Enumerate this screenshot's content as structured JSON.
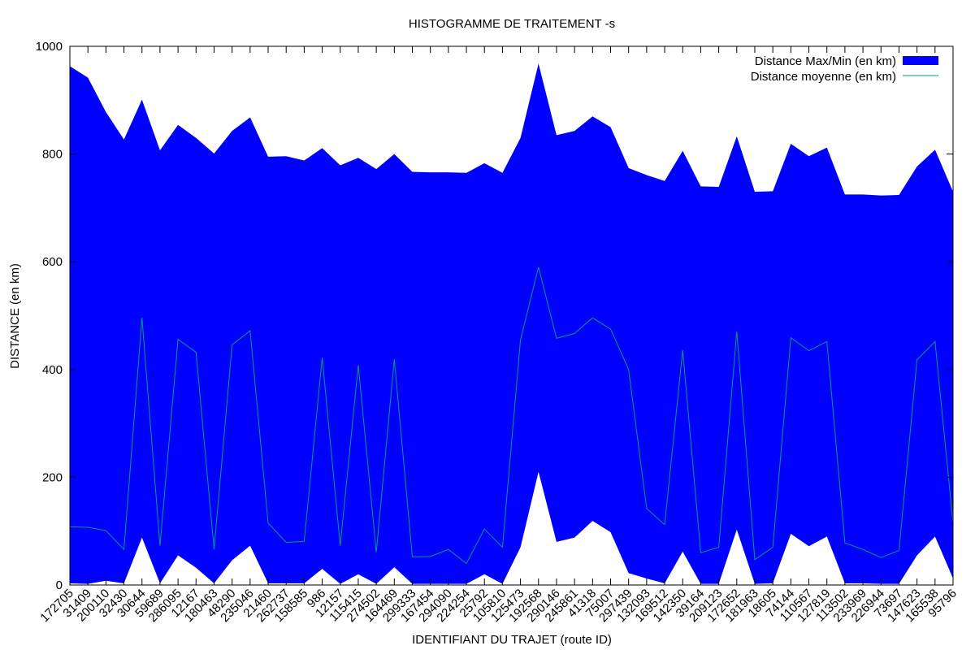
{
  "chart_data": {
    "type": "area",
    "title": "HISTOGRAMME DE TRAITEMENT -s",
    "xlabel": "IDENTIFIANT DU TRAJET (route ID)",
    "ylabel": "DISTANCE (en km)",
    "ylim": [
      0,
      1000
    ],
    "yticks": [
      0,
      200,
      400,
      600,
      800,
      1000
    ],
    "grid": false,
    "legend_position": "top-right",
    "colors": {
      "range": "#0000ff",
      "mean": "#009e73"
    },
    "categories": [
      "172705",
      "31409",
      "200110",
      "32430",
      "30644",
      "59689",
      "286095",
      "12167",
      "180463",
      "48290",
      "235046",
      "21460",
      "262737",
      "158585",
      "986",
      "12157",
      "115415",
      "274502",
      "164469",
      "299333",
      "167454",
      "294090",
      "224254",
      "25792",
      "105810",
      "125473",
      "192568",
      "290146",
      "245861",
      "41318",
      "75007",
      "297439",
      "132093",
      "169512",
      "142350",
      "39164",
      "209123",
      "172652",
      "181963",
      "18605",
      "74144",
      "110567",
      "127819",
      "113502",
      "233969",
      "226944",
      "73697",
      "147623",
      "165538",
      "95796"
    ],
    "series": [
      {
        "name": "Distance Max/Min (en km)",
        "kind": "range",
        "max": [
          963,
          942,
          878,
          827,
          901,
          807,
          854,
          830,
          801,
          843,
          868,
          795,
          796,
          788,
          811,
          779,
          793,
          772,
          800,
          767,
          766,
          766,
          765,
          783,
          765,
          830,
          968,
          835,
          843,
          870,
          850,
          774,
          761,
          750,
          806,
          740,
          739,
          833,
          730,
          731,
          819,
          796,
          812,
          725,
          725,
          723,
          724,
          777,
          808,
          730
        ],
        "min": [
          3,
          2,
          8,
          3,
          88,
          3,
          55,
          32,
          3,
          46,
          73,
          3,
          3,
          3,
          30,
          2,
          20,
          2,
          33,
          2,
          2,
          2,
          2,
          20,
          2,
          70,
          210,
          80,
          88,
          119,
          98,
          22,
          12,
          3,
          62,
          2,
          2,
          103,
          2,
          3,
          95,
          72,
          90,
          3,
          3,
          2,
          2,
          55,
          90,
          12
        ]
      },
      {
        "name": "Distance moyenne (en km)",
        "kind": "line",
        "values": [
          108,
          107,
          101,
          66,
          496,
          73,
          456,
          432,
          66,
          446,
          472,
          115,
          79,
          81,
          422,
          73,
          408,
          61,
          419,
          52,
          53,
          66,
          40,
          104,
          70,
          455,
          590,
          458,
          467,
          496,
          475,
          400,
          142,
          112,
          436,
          60,
          70,
          471,
          47,
          70,
          459,
          435,
          452,
          78,
          66,
          51,
          64,
          418,
          452,
          115
        ]
      }
    ]
  }
}
